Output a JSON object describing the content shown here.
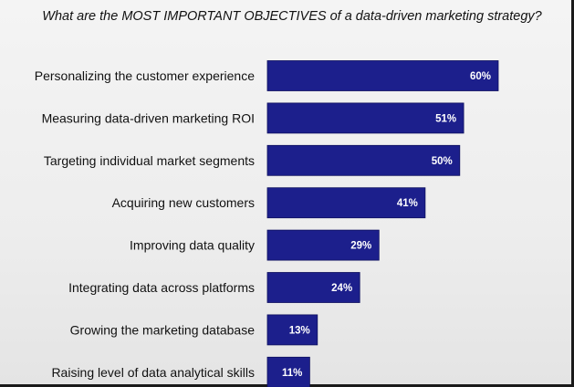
{
  "chart_data": {
    "type": "bar",
    "orientation": "horizontal",
    "title": "What are the MOST IMPORTANT OBJECTIVES of a data-driven marketing strategy?",
    "categories": [
      "Personalizing the customer experience",
      "Measuring data-driven marketing ROI",
      "Targeting individual market segments",
      "Acquiring new customers",
      "Improving data quality",
      "Integrating data across platforms",
      "Growing the marketing database",
      "Raising level of data analytical skills"
    ],
    "values": [
      60,
      51,
      50,
      41,
      29,
      24,
      13,
      11
    ],
    "value_labels": [
      "60%",
      "51%",
      "50%",
      "41%",
      "29%",
      "24%",
      "13%",
      "11%"
    ],
    "unit": "%",
    "xlim": [
      0,
      100
    ],
    "grid": false,
    "legend": "none",
    "bar_color": "#1c1f8c"
  }
}
